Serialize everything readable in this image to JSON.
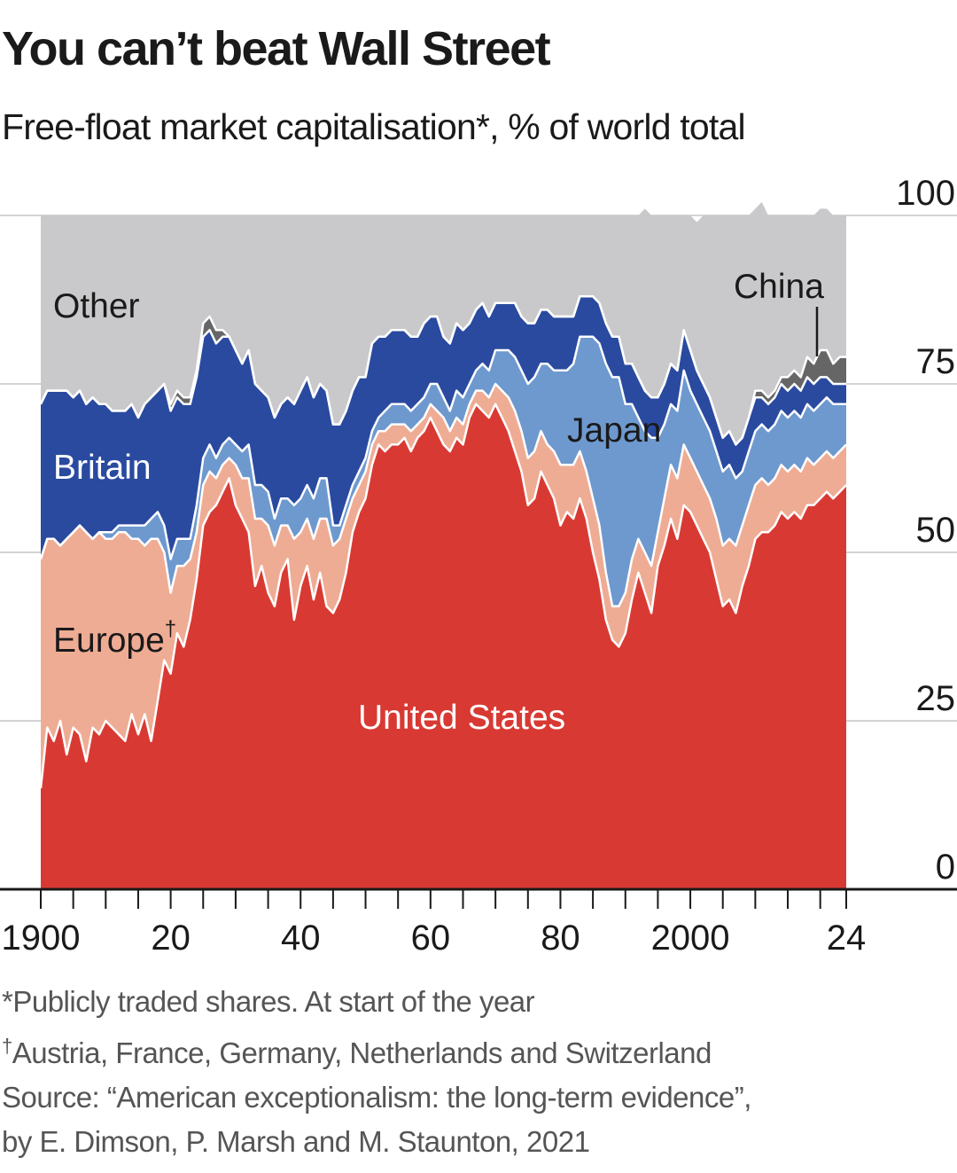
{
  "title": "You can’t beat Wall Street",
  "subtitle": "Free-float market capitalisation*, % of world total",
  "chart_data": {
    "type": "area",
    "stacked": true,
    "x": [
      1900,
      1901,
      1902,
      1903,
      1904,
      1905,
      1906,
      1907,
      1908,
      1909,
      1910,
      1911,
      1912,
      1913,
      1914,
      1915,
      1916,
      1917,
      1918,
      1919,
      1920,
      1921,
      1922,
      1923,
      1924,
      1925,
      1926,
      1927,
      1928,
      1929,
      1930,
      1931,
      1932,
      1933,
      1934,
      1935,
      1936,
      1937,
      1938,
      1939,
      1940,
      1941,
      1942,
      1943,
      1944,
      1945,
      1946,
      1947,
      1948,
      1949,
      1950,
      1951,
      1952,
      1953,
      1954,
      1955,
      1956,
      1957,
      1958,
      1959,
      1960,
      1961,
      1962,
      1963,
      1964,
      1965,
      1966,
      1967,
      1968,
      1969,
      1970,
      1971,
      1972,
      1973,
      1974,
      1975,
      1976,
      1977,
      1978,
      1979,
      1980,
      1981,
      1982,
      1983,
      1984,
      1985,
      1986,
      1987,
      1988,
      1989,
      1990,
      1991,
      1992,
      1993,
      1994,
      1995,
      1996,
      1997,
      1998,
      1999,
      2000,
      2001,
      2002,
      2003,
      2004,
      2005,
      2006,
      2007,
      2008,
      2009,
      2010,
      2011,
      2012,
      2013,
      2014,
      2015,
      2016,
      2017,
      2018,
      2019,
      2020,
      2021,
      2022,
      2023,
      2024
    ],
    "series": [
      {
        "name": "United States",
        "color": "#d83a33",
        "values": [
          15,
          24,
          22,
          25,
          20,
          24,
          23,
          19,
          24,
          23,
          25,
          24,
          23,
          22,
          26,
          23,
          26,
          22,
          28,
          34,
          32,
          38,
          36,
          40,
          46,
          54,
          56,
          57,
          59,
          61,
          57,
          55,
          53,
          45,
          48,
          44,
          42,
          47,
          49,
          40,
          45,
          48,
          43,
          47,
          42,
          41,
          43,
          47,
          53,
          56,
          58,
          63,
          66,
          65,
          66,
          66,
          67,
          65,
          67,
          68,
          70,
          68,
          66,
          65,
          67,
          66,
          70,
          72,
          71,
          70,
          72,
          70,
          68,
          65,
          62,
          57,
          58,
          62,
          60,
          58,
          54,
          56,
          55,
          58,
          55,
          50,
          46,
          40,
          37,
          36,
          38,
          43,
          47,
          44,
          41,
          48,
          51,
          55,
          52,
          57,
          56,
          54,
          52,
          50,
          46,
          42,
          43,
          41,
          45,
          48,
          52,
          53,
          53,
          54,
          56,
          55,
          56,
          55,
          57,
          57,
          58,
          59,
          58,
          59,
          60
        ]
      },
      {
        "name": "Europe",
        "color": "#efac94",
        "values": [
          34,
          28,
          30,
          26,
          32,
          29,
          31,
          34,
          28,
          30,
          27,
          28,
          30,
          31,
          26,
          29,
          25,
          30,
          24,
          16,
          12,
          10,
          12,
          9,
          7,
          6,
          6,
          4,
          4,
          3,
          6,
          6,
          8,
          10,
          7,
          10,
          9,
          7,
          5,
          12,
          8,
          7,
          9,
          8,
          13,
          10,
          9,
          8,
          5,
          4,
          4,
          3,
          2,
          3,
          3,
          3,
          2,
          3,
          2,
          2,
          2,
          3,
          4,
          3,
          3,
          3,
          2,
          2,
          3,
          3,
          3,
          4,
          5,
          6,
          6,
          7,
          7,
          6,
          6,
          7,
          9,
          7,
          8,
          7,
          7,
          8,
          8,
          7,
          5,
          6,
          6,
          6,
          5,
          6,
          7,
          5,
          7,
          8,
          9,
          9,
          8,
          8,
          8,
          8,
          9,
          9,
          9,
          10,
          9,
          9,
          8,
          8,
          7,
          7,
          7,
          7,
          7,
          7,
          7,
          6,
          6,
          6,
          6,
          6,
          6
        ]
      },
      {
        "name": "Japan",
        "color": "#6e99cf",
        "values": [
          0,
          0,
          0,
          0,
          0,
          0,
          0,
          0,
          0,
          0,
          1,
          1,
          1,
          1,
          2,
          2,
          3,
          3,
          4,
          4,
          5,
          4,
          4,
          3,
          4,
          4,
          4,
          3,
          3,
          3,
          3,
          4,
          5,
          5,
          5,
          5,
          4,
          4,
          4,
          5,
          5,
          5,
          6,
          6,
          6,
          3,
          2,
          2,
          2,
          2,
          2,
          2,
          2,
          3,
          3,
          3,
          3,
          3,
          3,
          3,
          3,
          4,
          3,
          3,
          4,
          4,
          3,
          3,
          4,
          4,
          5,
          6,
          7,
          8,
          9,
          11,
          11,
          10,
          12,
          12,
          14,
          14,
          15,
          17,
          20,
          24,
          27,
          31,
          34,
          34,
          28,
          23,
          18,
          18,
          19,
          14,
          11,
          9,
          10,
          11,
          10,
          10,
          10,
          10,
          10,
          11,
          11,
          10,
          8,
          8,
          8,
          8,
          8,
          8,
          8,
          8,
          8,
          8,
          8,
          8,
          8,
          8,
          8,
          7,
          6
        ]
      },
      {
        "name": "Britain",
        "color": "#2a4aa0",
        "values": [
          23,
          22,
          22,
          23,
          22,
          20,
          20,
          19,
          21,
          19,
          19,
          18,
          17,
          17,
          18,
          16,
          18,
          18,
          18,
          21,
          22,
          21,
          20,
          20,
          19,
          18,
          17,
          17,
          16,
          15,
          14,
          13,
          14,
          15,
          14,
          14,
          15,
          14,
          15,
          15,
          16,
          16,
          15,
          14,
          13,
          15,
          15,
          14,
          14,
          14,
          12,
          13,
          12,
          11,
          11,
          11,
          11,
          11,
          10,
          11,
          10,
          10,
          9,
          10,
          10,
          10,
          9,
          9,
          9,
          8,
          7,
          7,
          7,
          8,
          8,
          9,
          8,
          8,
          8,
          8,
          8,
          8,
          7,
          6,
          6,
          6,
          6,
          6,
          6,
          6,
          6,
          6,
          6,
          6,
          6,
          6,
          6,
          6,
          6,
          6,
          6,
          5,
          5,
          5,
          5,
          5,
          5,
          5,
          5,
          5,
          5,
          4,
          4,
          4,
          4,
          4,
          4,
          4,
          4,
          4,
          4,
          3,
          3,
          3,
          3
        ]
      },
      {
        "name": "China",
        "color": "#666666",
        "values": [
          0,
          0,
          0,
          0,
          0,
          0,
          0,
          0,
          0,
          0,
          0,
          0,
          0,
          0,
          0,
          0,
          0,
          0,
          0,
          0,
          1,
          1,
          1,
          1,
          1,
          2,
          2,
          2,
          1,
          0,
          0,
          0,
          0,
          0,
          0,
          0,
          0,
          0,
          0,
          0,
          0,
          0,
          0,
          0,
          0,
          0,
          0,
          0,
          0,
          0,
          0,
          0,
          0,
          0,
          0,
          0,
          0,
          0,
          0,
          0,
          0,
          0,
          0,
          0,
          0,
          0,
          0,
          0,
          0,
          0,
          0,
          0,
          0,
          0,
          0,
          0,
          0,
          0,
          0,
          0,
          0,
          0,
          0,
          0,
          0,
          0,
          0,
          0,
          0,
          0,
          0,
          0,
          0,
          0,
          0,
          0,
          0,
          0,
          0,
          0,
          0,
          0,
          0,
          0,
          0,
          0,
          0,
          0,
          0,
          0,
          1,
          1,
          1,
          1,
          1,
          2,
          2,
          2,
          3,
          3,
          4,
          4,
          3,
          4,
          4
        ]
      },
      {
        "name": "Other",
        "color": "#c9c9cb",
        "values": [
          28,
          26,
          26,
          26,
          26,
          27,
          26,
          28,
          27,
          28,
          28,
          29,
          29,
          29,
          28,
          30,
          28,
          27,
          26,
          25,
          28,
          26,
          27,
          27,
          23,
          16,
          15,
          17,
          17,
          18,
          20,
          22,
          20,
          25,
          26,
          27,
          30,
          28,
          27,
          28,
          26,
          24,
          27,
          25,
          26,
          31,
          31,
          29,
          26,
          24,
          24,
          19,
          18,
          18,
          17,
          17,
          17,
          18,
          18,
          16,
          15,
          15,
          18,
          19,
          16,
          17,
          16,
          14,
          13,
          15,
          13,
          13,
          13,
          13,
          15,
          16,
          16,
          14,
          14,
          15,
          15,
          15,
          15,
          12,
          12,
          12,
          13,
          16,
          18,
          18,
          22,
          22,
          24,
          27,
          27,
          27,
          25,
          22,
          23,
          17,
          20,
          22,
          25,
          27,
          30,
          33,
          32,
          34,
          33,
          30,
          27,
          28,
          27,
          26,
          24,
          24,
          23,
          24,
          21,
          22,
          21,
          21,
          22,
          21,
          21
        ]
      }
    ],
    "y_ticks": [
      "100",
      "75",
      "50",
      "25",
      "0"
    ],
    "x_ticks": [
      "1900",
      "20",
      "40",
      "60",
      "80",
      "2000",
      "24"
    ],
    "ylim": [
      0,
      100
    ],
    "xlim": [
      1900,
      2024
    ],
    "grid": true,
    "annotations": {
      "other": "Other",
      "britain": "Britain",
      "europe": "Europe",
      "europe_mark": "†",
      "japan": "Japan",
      "us": "United States",
      "china": "China"
    }
  },
  "notes": {
    "note1": "*Publicly traded shares. At start of the year",
    "note2_mark": "†",
    "note2": "Austria, France, Germany, Netherlands and Switzerland",
    "source1": "Source: “American exceptionalism: the long-term evidence”,",
    "source2": "by E. Dimson, P. Marsh and M. Staunton, 2021"
  }
}
